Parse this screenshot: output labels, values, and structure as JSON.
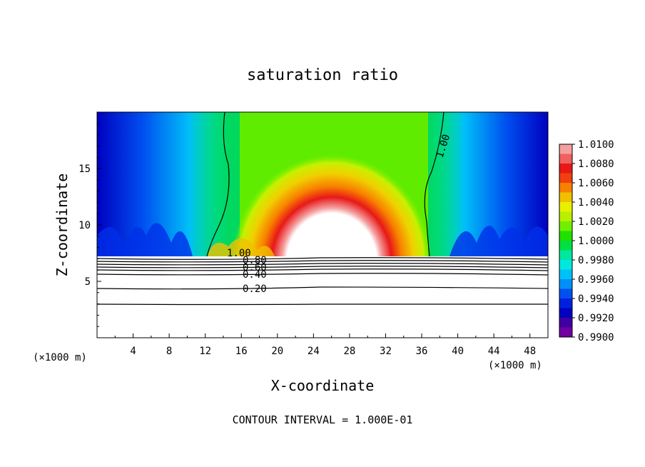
{
  "chart_data": {
    "type": "heatmap",
    "title": "saturation ratio",
    "xlabel": "X-coordinate",
    "ylabel": "Z-coordinate",
    "x_unit_label_left": "(×1000 m)",
    "x_unit_label_right": "(×1000 m)",
    "footer": "CONTOUR INTERVAL = 1.000E-01",
    "xlim": [
      0,
      50
    ],
    "ylim": [
      0,
      20
    ],
    "x_ticks": [
      "4",
      "8",
      "12",
      "16",
      "20",
      "24",
      "28",
      "32",
      "36",
      "40",
      "44",
      "48"
    ],
    "y_ticks": [
      "5",
      "10",
      "15"
    ],
    "colorbar": {
      "labels": [
        "1.0100",
        "1.0080",
        "1.0060",
        "1.0040",
        "1.0020",
        "1.0000",
        "0.9980",
        "0.9960",
        "0.9940",
        "0.9920",
        "0.9900"
      ],
      "colors": [
        "#f5a0a0",
        "#f06060",
        "#e81818",
        "#f04010",
        "#f88000",
        "#f0c000",
        "#e8f000",
        "#b8f000",
        "#70f000",
        "#20e000",
        "#00e040",
        "#00e8a0",
        "#00e8e0",
        "#00c0f8",
        "#0090f8",
        "#0050f0",
        "#0020e0",
        "#0000c0",
        "#4000a0",
        "#7000a0"
      ]
    },
    "contours": [
      {
        "label": "1.00",
        "x": [
          14,
          30,
          44
        ],
        "y": [
          7.4,
          7.4,
          7.4
        ]
      },
      {
        "label": "0.80",
        "x": [
          0,
          50
        ],
        "y": [
          6.7,
          6.7
        ]
      },
      {
        "label": "0.60",
        "x": [
          0,
          50
        ],
        "y": [
          6.3,
          6.3
        ]
      },
      {
        "label": "0.40",
        "x": [
          0,
          50
        ],
        "y": [
          5.8,
          5.8
        ]
      },
      {
        "label": "0.20",
        "x": [
          0,
          50
        ],
        "y": [
          4.4,
          4.4
        ]
      }
    ],
    "contour_label_100_upper": "1.00",
    "contour_label_100_lower": "1.00",
    "label_080": "0.80",
    "label_060": "0.60",
    "label_040": "0.40",
    "label_020": "0.20"
  }
}
